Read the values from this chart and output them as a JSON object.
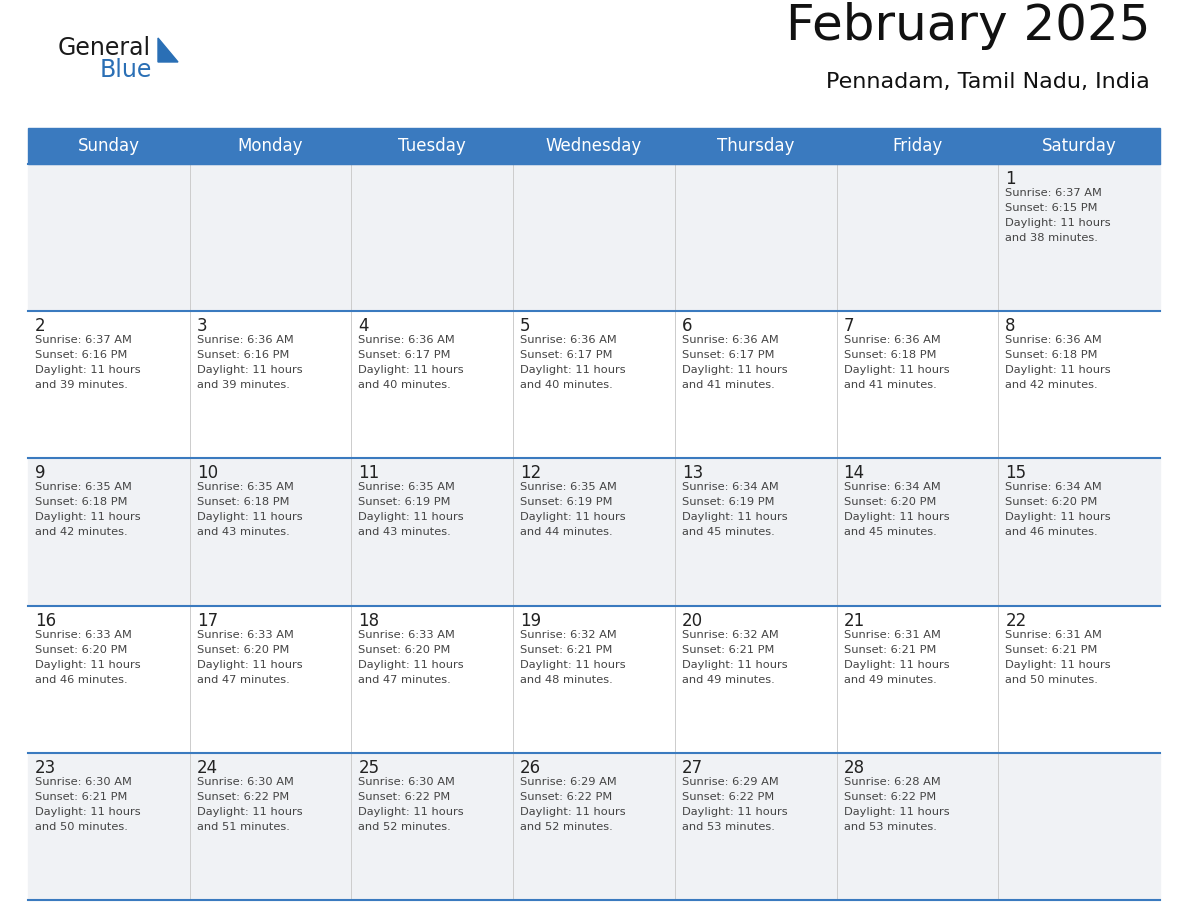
{
  "title": "February 2025",
  "subtitle": "Pennadam, Tamil Nadu, India",
  "days_of_week": [
    "Sunday",
    "Monday",
    "Tuesday",
    "Wednesday",
    "Thursday",
    "Friday",
    "Saturday"
  ],
  "header_bg": "#3a7abf",
  "header_fg": "#ffffff",
  "row_bg_odd": "#f0f2f5",
  "row_bg_even": "#ffffff",
  "line_color": "#3a7abf",
  "text_color": "#222222",
  "small_text_color": "#444444",
  "logo_general_color": "#1a1a1a",
  "logo_blue_color": "#2a6fb5",
  "calendar_data": [
    [
      null,
      null,
      null,
      null,
      null,
      null,
      {
        "day": 1,
        "sunrise": "6:37 AM",
        "sunset": "6:15 PM",
        "daylight_hours": 11,
        "daylight_minutes": 38
      }
    ],
    [
      {
        "day": 2,
        "sunrise": "6:37 AM",
        "sunset": "6:16 PM",
        "daylight_hours": 11,
        "daylight_minutes": 39
      },
      {
        "day": 3,
        "sunrise": "6:36 AM",
        "sunset": "6:16 PM",
        "daylight_hours": 11,
        "daylight_minutes": 39
      },
      {
        "day": 4,
        "sunrise": "6:36 AM",
        "sunset": "6:17 PM",
        "daylight_hours": 11,
        "daylight_minutes": 40
      },
      {
        "day": 5,
        "sunrise": "6:36 AM",
        "sunset": "6:17 PM",
        "daylight_hours": 11,
        "daylight_minutes": 40
      },
      {
        "day": 6,
        "sunrise": "6:36 AM",
        "sunset": "6:17 PM",
        "daylight_hours": 11,
        "daylight_minutes": 41
      },
      {
        "day": 7,
        "sunrise": "6:36 AM",
        "sunset": "6:18 PM",
        "daylight_hours": 11,
        "daylight_minutes": 41
      },
      {
        "day": 8,
        "sunrise": "6:36 AM",
        "sunset": "6:18 PM",
        "daylight_hours": 11,
        "daylight_minutes": 42
      }
    ],
    [
      {
        "day": 9,
        "sunrise": "6:35 AM",
        "sunset": "6:18 PM",
        "daylight_hours": 11,
        "daylight_minutes": 42
      },
      {
        "day": 10,
        "sunrise": "6:35 AM",
        "sunset": "6:18 PM",
        "daylight_hours": 11,
        "daylight_minutes": 43
      },
      {
        "day": 11,
        "sunrise": "6:35 AM",
        "sunset": "6:19 PM",
        "daylight_hours": 11,
        "daylight_minutes": 43
      },
      {
        "day": 12,
        "sunrise": "6:35 AM",
        "sunset": "6:19 PM",
        "daylight_hours": 11,
        "daylight_minutes": 44
      },
      {
        "day": 13,
        "sunrise": "6:34 AM",
        "sunset": "6:19 PM",
        "daylight_hours": 11,
        "daylight_minutes": 45
      },
      {
        "day": 14,
        "sunrise": "6:34 AM",
        "sunset": "6:20 PM",
        "daylight_hours": 11,
        "daylight_minutes": 45
      },
      {
        "day": 15,
        "sunrise": "6:34 AM",
        "sunset": "6:20 PM",
        "daylight_hours": 11,
        "daylight_minutes": 46
      }
    ],
    [
      {
        "day": 16,
        "sunrise": "6:33 AM",
        "sunset": "6:20 PM",
        "daylight_hours": 11,
        "daylight_minutes": 46
      },
      {
        "day": 17,
        "sunrise": "6:33 AM",
        "sunset": "6:20 PM",
        "daylight_hours": 11,
        "daylight_minutes": 47
      },
      {
        "day": 18,
        "sunrise": "6:33 AM",
        "sunset": "6:20 PM",
        "daylight_hours": 11,
        "daylight_minutes": 47
      },
      {
        "day": 19,
        "sunrise": "6:32 AM",
        "sunset": "6:21 PM",
        "daylight_hours": 11,
        "daylight_minutes": 48
      },
      {
        "day": 20,
        "sunrise": "6:32 AM",
        "sunset": "6:21 PM",
        "daylight_hours": 11,
        "daylight_minutes": 49
      },
      {
        "day": 21,
        "sunrise": "6:31 AM",
        "sunset": "6:21 PM",
        "daylight_hours": 11,
        "daylight_minutes": 49
      },
      {
        "day": 22,
        "sunrise": "6:31 AM",
        "sunset": "6:21 PM",
        "daylight_hours": 11,
        "daylight_minutes": 50
      }
    ],
    [
      {
        "day": 23,
        "sunrise": "6:30 AM",
        "sunset": "6:21 PM",
        "daylight_hours": 11,
        "daylight_minutes": 50
      },
      {
        "day": 24,
        "sunrise": "6:30 AM",
        "sunset": "6:22 PM",
        "daylight_hours": 11,
        "daylight_minutes": 51
      },
      {
        "day": 25,
        "sunrise": "6:30 AM",
        "sunset": "6:22 PM",
        "daylight_hours": 11,
        "daylight_minutes": 52
      },
      {
        "day": 26,
        "sunrise": "6:29 AM",
        "sunset": "6:22 PM",
        "daylight_hours": 11,
        "daylight_minutes": 52
      },
      {
        "day": 27,
        "sunrise": "6:29 AM",
        "sunset": "6:22 PM",
        "daylight_hours": 11,
        "daylight_minutes": 53
      },
      {
        "day": 28,
        "sunrise": "6:28 AM",
        "sunset": "6:22 PM",
        "daylight_hours": 11,
        "daylight_minutes": 53
      },
      null
    ]
  ]
}
